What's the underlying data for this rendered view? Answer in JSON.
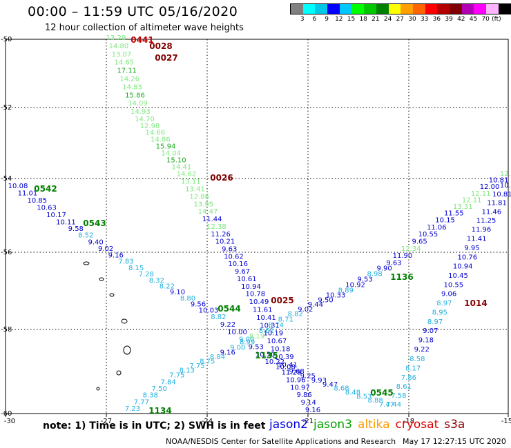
{
  "header": {
    "title": "00:00 – 11:59 UTC 05/16/2020",
    "subtitle": "12 hour collection of altimeter wave heights"
  },
  "legend": {
    "colors": [
      "#808080",
      "#00ffff",
      "#00c8e6",
      "#0000ff",
      "#00c8ff",
      "#00ff00",
      "#00c800",
      "#008000",
      "#ffff00",
      "#ffa000",
      "#ff6400",
      "#ff0000",
      "#b40000",
      "#800000",
      "#b400b4",
      "#ff00ff",
      "#ffb4ff",
      "#000000"
    ],
    "ticks": [
      "3",
      "6",
      "9",
      "12",
      "15",
      "18",
      "21",
      "24",
      "27",
      "30",
      "33",
      "36",
      "39",
      "42",
      "45",
      "70",
      "(ft)"
    ]
  },
  "axes": {
    "lon_ticks": [
      "-30",
      "-27",
      "-24",
      "-21",
      "-18",
      "-15"
    ],
    "lat_ticks": [
      "-50",
      "-52",
      "-54",
      "-56",
      "-58",
      "-60"
    ]
  },
  "tracks": [
    {
      "name": "desc-west",
      "labels": [
        {
          "t": "13.29",
          "c": "#7ee87e"
        },
        {
          "t": "14.80",
          "c": "#7ee87e"
        },
        {
          "t": "13.07",
          "c": "#7ee87e"
        },
        {
          "t": "14.65",
          "c": "#7ee87e"
        },
        {
          "t": "17.11",
          "c": "#1aaa1a"
        },
        {
          "t": "14.26",
          "c": "#7ee87e"
        },
        {
          "t": "14.83",
          "c": "#7ee87e"
        },
        {
          "t": "15.86",
          "c": "#1aaa1a"
        },
        {
          "t": "14.09",
          "c": "#7ee87e"
        },
        {
          "t": "14.93",
          "c": "#7ee87e"
        },
        {
          "t": "14.70",
          "c": "#7ee87e"
        },
        {
          "t": "12.98",
          "c": "#7ee87e"
        },
        {
          "t": "14.66",
          "c": "#7ee87e"
        },
        {
          "t": "14.86",
          "c": "#7ee87e"
        },
        {
          "t": "15.94",
          "c": "#1aaa1a"
        },
        {
          "t": "14.04",
          "c": "#7ee87e"
        },
        {
          "t": "15.10",
          "c": "#1aaa1a"
        },
        {
          "t": "14.41",
          "c": "#7ee87e"
        },
        {
          "t": "14.62",
          "c": "#7ee87e"
        },
        {
          "t": "13.11",
          "c": "#7ee87e"
        },
        {
          "t": "13.41",
          "c": "#7ee87e"
        },
        {
          "t": "12.86",
          "c": "#7ee87e"
        },
        {
          "t": "13.95",
          "c": "#7ee87e"
        },
        {
          "t": "14.47",
          "c": "#7ee87e"
        },
        {
          "t": "11.44",
          "c": "#0000d0"
        },
        {
          "t": "12.38",
          "c": "#7ee87e"
        },
        {
          "t": "11.26",
          "c": "#0000d0"
        },
        {
          "t": "10.21",
          "c": "#0000d0"
        },
        {
          "t": "9.63",
          "c": "#0000d0"
        },
        {
          "t": "10.62",
          "c": "#0000d0"
        },
        {
          "t": "10.16",
          "c": "#0000d0"
        },
        {
          "t": "9.67",
          "c": "#0000d0"
        },
        {
          "t": "10.61",
          "c": "#0000d0"
        },
        {
          "t": "10.94",
          "c": "#0000d0"
        },
        {
          "t": "10.78",
          "c": "#0000d0"
        },
        {
          "t": "10.49",
          "c": "#0000d0"
        },
        {
          "t": "11.61",
          "c": "#0000d0"
        },
        {
          "t": "10.41",
          "c": "#0000d0"
        },
        {
          "t": "10.31",
          "c": "#0000d0"
        },
        {
          "t": "10.19",
          "c": "#0000d0"
        },
        {
          "t": "10.67",
          "c": "#0000d0"
        },
        {
          "t": "10.18",
          "c": "#0000d0"
        },
        {
          "t": "10.39",
          "c": "#0000d0"
        },
        {
          "t": "10.41",
          "c": "#0000d0"
        },
        {
          "t": "11.29",
          "c": "#0000d0"
        },
        {
          "t": "10.96",
          "c": "#0000d0"
        },
        {
          "t": "10.97",
          "c": "#0000d0"
        },
        {
          "t": "9.86",
          "c": "#0000d0"
        },
        {
          "t": "9.14",
          "c": "#0000d0"
        },
        {
          "t": "9.16",
          "c": "#0000d0"
        }
      ]
    },
    {
      "name": "desc-east",
      "labels": [
        {
          "t": "10.08",
          "c": "#0000d0"
        },
        {
          "t": "11.01",
          "c": "#0000d0"
        },
        {
          "t": "10.85",
          "c": "#0000d0"
        },
        {
          "t": "10.63",
          "c": "#0000d0"
        },
        {
          "t": "10.17",
          "c": "#0000d0"
        },
        {
          "t": "10.11",
          "c": "#0000d0"
        },
        {
          "t": "9.58",
          "c": "#0000d0"
        },
        {
          "t": "8.52",
          "c": "#20b0e0"
        },
        {
          "t": "9.40",
          "c": "#0000d0"
        },
        {
          "t": "9.02",
          "c": "#0000d0"
        },
        {
          "t": "9.16",
          "c": "#0000d0"
        },
        {
          "t": "7.83",
          "c": "#20b0e0"
        },
        {
          "t": "8.15",
          "c": "#20b0e0"
        },
        {
          "t": "7.28",
          "c": "#20b0e0"
        },
        {
          "t": "8.32",
          "c": "#20b0e0"
        },
        {
          "t": "8.22",
          "c": "#20b0e0"
        },
        {
          "t": "9.10",
          "c": "#0000d0"
        },
        {
          "t": "8.80",
          "c": "#20b0e0"
        },
        {
          "t": "9.56",
          "c": "#0000d0"
        },
        {
          "t": "10.03",
          "c": "#0000d0"
        },
        {
          "t": "8.82",
          "c": "#20b0e0"
        },
        {
          "t": "9.22",
          "c": "#0000d0"
        },
        {
          "t": "10.00",
          "c": "#0000d0"
        },
        {
          "t": "9.00",
          "c": "#20b0e0"
        },
        {
          "t": "9.53",
          "c": "#0000d0"
        },
        {
          "t": "10.50",
          "c": "#0000d0"
        },
        {
          "t": "10.22",
          "c": "#0000d0"
        },
        {
          "t": "10.08",
          "c": "#0000d0"
        },
        {
          "t": "9.68",
          "c": "#0000d0"
        },
        {
          "t": "9.25",
          "c": "#0000d0"
        },
        {
          "t": "9.93",
          "c": "#0000d0"
        },
        {
          "t": "9.47",
          "c": "#0000d0"
        },
        {
          "t": "8.68",
          "c": "#20b0e0"
        },
        {
          "t": "8.48",
          "c": "#20b0e0"
        },
        {
          "t": "8.53",
          "c": "#20b0e0"
        },
        {
          "t": "8.88",
          "c": "#20b0e0"
        },
        {
          "t": "7.47",
          "c": "#20b0e0"
        }
      ]
    },
    {
      "name": "asc-west",
      "labels": [
        {
          "t": "7.23",
          "c": "#20b0e0"
        },
        {
          "t": "7.77",
          "c": "#20b0e0"
        },
        {
          "t": "8.38",
          "c": "#20b0e0"
        },
        {
          "t": "7.50",
          "c": "#20b0e0"
        },
        {
          "t": "7.84",
          "c": "#20b0e0"
        },
        {
          "t": "7.75",
          "c": "#20b0e0"
        },
        {
          "t": "8.13",
          "c": "#20b0e0"
        },
        {
          "t": "7.75",
          "c": "#20b0e0"
        },
        {
          "t": "8.75",
          "c": "#20b0e0"
        },
        {
          "t": "8.84",
          "c": "#20b0e0"
        },
        {
          "t": "9.16",
          "c": "#0000d0"
        },
        {
          "t": "9.00",
          "c": "#20b0e0"
        },
        {
          "t": "8.99",
          "c": "#20b0e0"
        },
        {
          "t": "8.19",
          "c": "#7ee87e"
        },
        {
          "t": "8.61",
          "c": "#20b0e0"
        },
        {
          "t": "8.74",
          "c": "#20b0e0"
        },
        {
          "t": "8.71",
          "c": "#20b0e0"
        },
        {
          "t": "8.82",
          "c": "#20b0e0"
        },
        {
          "t": "9.02",
          "c": "#0000d0"
        },
        {
          "t": "9.44",
          "c": "#0000d0"
        },
        {
          "t": "9.50",
          "c": "#0000d0"
        },
        {
          "t": "10.33",
          "c": "#0000d0"
        },
        {
          "t": "8.89",
          "c": "#20b0e0"
        },
        {
          "t": "10.92",
          "c": "#0000d0"
        },
        {
          "t": "9.53",
          "c": "#0000d0"
        },
        {
          "t": "8.98",
          "c": "#20b0e0"
        },
        {
          "t": "9.90",
          "c": "#0000d0"
        },
        {
          "t": "9.63",
          "c": "#0000d0"
        },
        {
          "t": "11.90",
          "c": "#0000d0"
        },
        {
          "t": "12.34",
          "c": "#7ee87e"
        },
        {
          "t": "9.65",
          "c": "#0000d0"
        },
        {
          "t": "10.55",
          "c": "#0000d0"
        },
        {
          "t": "11.06",
          "c": "#0000d0"
        },
        {
          "t": "10.15",
          "c": "#0000d0"
        },
        {
          "t": "11.55",
          "c": "#0000d0"
        },
        {
          "t": "13.31",
          "c": "#7ee87e"
        },
        {
          "t": "12.11",
          "c": "#7ee87e"
        },
        {
          "t": "12.11",
          "c": "#7ee87e"
        },
        {
          "t": "12.00",
          "c": "#0000d0"
        },
        {
          "t": "10.81",
          "c": "#0000d0"
        },
        {
          "t": "12.1",
          "c": "#7ee87e"
        }
      ]
    },
    {
      "name": "asc-east",
      "labels": [
        {
          "t": "7.44",
          "c": "#20b0e0"
        },
        {
          "t": "7.58",
          "c": "#20b0e0"
        },
        {
          "t": "8.61",
          "c": "#20b0e0"
        },
        {
          "t": "7.86",
          "c": "#20b0e0"
        },
        {
          "t": "8.17",
          "c": "#20b0e0"
        },
        {
          "t": "8.58",
          "c": "#20b0e0"
        },
        {
          "t": "9.22",
          "c": "#0000d0"
        },
        {
          "t": "9.18",
          "c": "#0000d0"
        },
        {
          "t": "9.07",
          "c": "#0000d0"
        },
        {
          "t": "8.97",
          "c": "#20b0e0"
        },
        {
          "t": "8.95",
          "c": "#20b0e0"
        },
        {
          "t": "8.97",
          "c": "#20b0e0"
        },
        {
          "t": "9.06",
          "c": "#0000d0"
        },
        {
          "t": "10.55",
          "c": "#0000d0"
        },
        {
          "t": "10.45",
          "c": "#0000d0"
        },
        {
          "t": "10.94",
          "c": "#0000d0"
        },
        {
          "t": "10.76",
          "c": "#0000d0"
        },
        {
          "t": "9.95",
          "c": "#0000d0"
        },
        {
          "t": "11.41",
          "c": "#0000d0"
        },
        {
          "t": "11.96",
          "c": "#0000d0"
        },
        {
          "t": "11.25",
          "c": "#0000d0"
        },
        {
          "t": "11.46",
          "c": "#0000d0"
        },
        {
          "t": "11.81",
          "c": "#0000d0"
        },
        {
          "t": "10.81",
          "c": "#0000d0"
        },
        {
          "t": "10.0",
          "c": "#0000d0"
        }
      ]
    }
  ],
  "time_labels": [
    {
      "t": "0441",
      "c": "#c00000"
    },
    {
      "t": "0028",
      "c": "#800000"
    },
    {
      "t": "0027",
      "c": "#800000"
    },
    {
      "t": "0026",
      "c": "#800000"
    },
    {
      "t": "0025",
      "c": "#800000"
    },
    {
      "t": "0542",
      "c": "#008000"
    },
    {
      "t": "0543",
      "c": "#008000"
    },
    {
      "t": "0544",
      "c": "#008000"
    },
    {
      "t": "1135",
      "c": "#008000"
    },
    {
      "t": "0545",
      "c": "#008000"
    },
    {
      "t": "1134",
      "c": "#008000"
    },
    {
      "t": "1136",
      "c": "#008000"
    },
    {
      "t": "1014",
      "c": "#800000"
    }
  ],
  "footer": {
    "note": "note: 1) Time is in UTC; 2) SWH is in feet",
    "satellites": [
      {
        "name": "jason2",
        "color": "#0000dd"
      },
      {
        "name": "jason3",
        "color": "#00a000"
      },
      {
        "name": "altika",
        "color": "#ff9900"
      },
      {
        "name": "cryosat",
        "color": "#dd0000"
      },
      {
        "name": "s3a",
        "color": "#880000"
      }
    ],
    "credit": "NOAA/NESDIS Center for Satellite Applications and Research",
    "timestamp": "May 17 12:27:15 UTC 2020"
  }
}
